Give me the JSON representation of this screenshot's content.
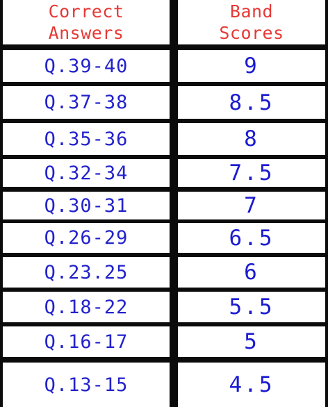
{
  "header": {
    "left": "Correct\nAnswers",
    "right": "Band\nScores"
  },
  "rows": [
    {
      "range": "Q.39-40",
      "score": "9"
    },
    {
      "range": "Q.37-38",
      "score": "8.5"
    },
    {
      "range": "Q.35-36",
      "score": "8"
    },
    {
      "range": "Q.32-34",
      "score": "7.5"
    },
    {
      "range": "Q.30-31",
      "score": "7"
    },
    {
      "range": "Q.26-29",
      "score": "6.5"
    },
    {
      "range": "Q.23.25",
      "score": "6"
    },
    {
      "range": "Q.18-22",
      "score": "5.5"
    },
    {
      "range": "Q.16-17",
      "score": "5"
    },
    {
      "range": "Q.13-15",
      "score": "4.5"
    }
  ],
  "colors": {
    "header_text": "#e53935",
    "body_text": "#2222cc",
    "border": "#0b0b0b",
    "cell_bg": "#ffffff"
  }
}
